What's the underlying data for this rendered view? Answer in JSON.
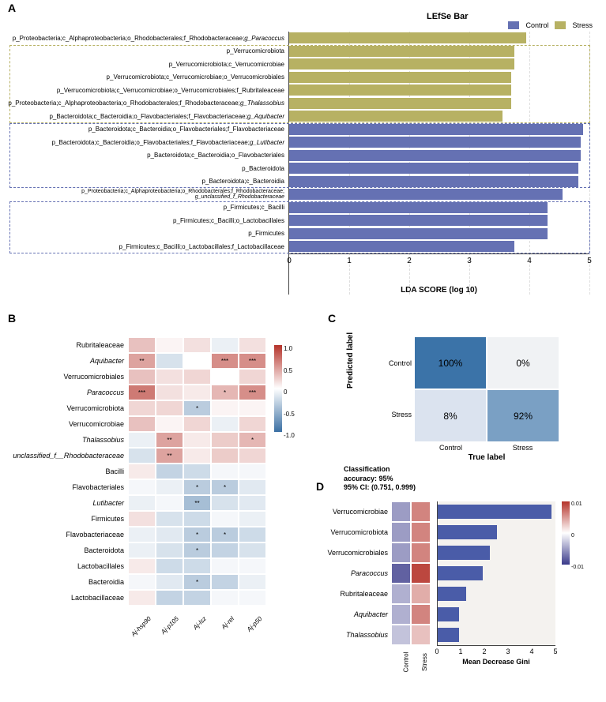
{
  "panelA": {
    "label": "A",
    "title": "LEfSe Bar",
    "legend": [
      {
        "label": "Control",
        "color": "#6571b3"
      },
      {
        "label": "Stress",
        "color": "#b7b163"
      }
    ],
    "xlim": [
      0,
      5
    ],
    "xtick_step": 1,
    "xlabel": "LDA SCORE (log 10)",
    "grid_color": "#dddddd",
    "bars": [
      {
        "label": "p_Proteobacteria;c_Alphaproteobacteria;o_Rhodobacterales;f_Rhodobacteraceae;",
        "genus": "g_Paracoccus",
        "value": 3.95,
        "group": "Stress"
      },
      {
        "label": "p_Verrucomicrobiota",
        "value": 3.75,
        "group": "Stress"
      },
      {
        "label": "p_Verrucomicrobiota;c_Verrucomicrobiae",
        "value": 3.75,
        "group": "Stress"
      },
      {
        "label": "p_Verrucomicrobiota;c_Verrucomicrobiae;o_Verrucomicrobiales",
        "value": 3.7,
        "group": "Stress"
      },
      {
        "label": "p_Verrucomicrobiota;c_Verrucomicrobiae;o_Verrucomicrobiales;f_Rubritaleaceae",
        "value": 3.7,
        "group": "Stress"
      },
      {
        "label": "p_Proteobacteria;c_Alphaproteobacteria;o_Rhodobacterales;f_Rhodobacteraceae;",
        "genus": "g_Thalassobius",
        "value": 3.7,
        "group": "Stress"
      },
      {
        "label": "p_Bacteroidota;c_Bacteroidia;o_Flavobacteriales;f_Flavobacteriaceae;",
        "genus": "g_Aquibacter",
        "value": 3.55,
        "group": "Stress"
      },
      {
        "label": "p_Bacteroidota;c_Bacteroidia;o_Flavobacteriales;f_Flavobacteriaceae",
        "value": 4.9,
        "group": "Control"
      },
      {
        "label": "p_Bacteroidota;c_Bacteroidia;o_Flavobacteriales;f_Flavobacteriaceae;",
        "genus": "g_Lutibacter",
        "value": 4.85,
        "group": "Control"
      },
      {
        "label": "p_Bacteroidota;c_Bacteroidia;o_Flavobacteriales",
        "value": 4.85,
        "group": "Control"
      },
      {
        "label": "p_Bacteroidota",
        "value": 4.82,
        "group": "Control"
      },
      {
        "label": "p_Bacteroidota;c_Bacteroidia",
        "value": 4.82,
        "group": "Control"
      },
      {
        "label": "p_Proteobacteria;c_Alphaproteobacteria;o_Rhodobacterales;f_Rhodobacteraceae;\ng_unclassified_f_Rhodobacteraceae",
        "value": 4.55,
        "group": "Control",
        "twoLine": true,
        "line1": "p_Proteobacteria;c_Alphaproteobacteria;o_Rhodobacterales;f_Rhodobacteraceae;",
        "line2": "g_unclassified_f_Rhodobacteraceae"
      },
      {
        "label": "p_Firmicutes;c_Bacilli",
        "value": 4.3,
        "group": "Control"
      },
      {
        "label": "p_Firmicutes;c_Bacilli;o_Lactobacillales",
        "value": 4.3,
        "group": "Control"
      },
      {
        "label": "p_Firmicutes",
        "value": 4.3,
        "group": "Control"
      },
      {
        "label": "p_Firmicutes;c_Bacilli;o_Lactobacillales;f_Lactobacillaceae",
        "value": 3.75,
        "group": "Control"
      }
    ],
    "boxes": [
      {
        "start": 1,
        "end": 6,
        "color": "#b7b163"
      },
      {
        "start": 7,
        "end": 11,
        "color": "#6571b3"
      },
      {
        "start": 13,
        "end": 16,
        "color": "#6571b3"
      }
    ]
  },
  "panelB": {
    "label": "B",
    "rows": [
      "Rubritaleaceae",
      "Aquibacter",
      "Verrucomicrobiales",
      "Paracoccus",
      "Verrucomicrobiota",
      "Verrucomicrobiae",
      "Thalassobius",
      "unclassified_f__Rhodobacteraceae",
      "Bacilli",
      "Flavobacteriales",
      "Lutibacter",
      "Firmicutes",
      "Flavobacteriaceae",
      "Bacteroidota",
      "Lactobacillales",
      "Bacteroidia",
      "Lactobacillaceae"
    ],
    "row_italic": [
      false,
      true,
      false,
      true,
      false,
      false,
      true,
      true,
      false,
      false,
      true,
      false,
      false,
      false,
      false,
      false,
      false
    ],
    "cols": [
      "Aj-hsp90",
      "Aj-p105",
      "Aj-lsz",
      "Aj-rel",
      "Aj-p50"
    ],
    "values": [
      [
        0.3,
        0.05,
        0.15,
        -0.1,
        0.15
      ],
      [
        0.45,
        -0.2,
        0.0,
        0.55,
        0.55
      ],
      [
        0.3,
        0.15,
        0.2,
        0.0,
        0.2
      ],
      [
        0.65,
        0.15,
        0.1,
        0.35,
        0.55
      ],
      [
        0.2,
        0.2,
        -0.35,
        0.05,
        0.05
      ],
      [
        0.3,
        0.05,
        0.2,
        -0.1,
        0.2
      ],
      [
        -0.1,
        0.45,
        0.1,
        0.25,
        0.35
      ],
      [
        -0.2,
        0.45,
        0.1,
        0.25,
        0.2
      ],
      [
        0.1,
        -0.3,
        -0.25,
        -0.05,
        -0.05
      ],
      [
        -0.05,
        -0.1,
        -0.35,
        -0.35,
        -0.15
      ],
      [
        -0.1,
        -0.05,
        -0.45,
        -0.2,
        -0.15
      ],
      [
        0.15,
        -0.2,
        -0.25,
        -0.05,
        -0.1
      ],
      [
        -0.1,
        -0.15,
        -0.35,
        -0.35,
        -0.25
      ],
      [
        -0.1,
        -0.2,
        -0.35,
        -0.3,
        -0.2
      ],
      [
        0.1,
        -0.25,
        -0.25,
        -0.05,
        -0.05
      ],
      [
        -0.05,
        -0.15,
        -0.35,
        -0.3,
        -0.1
      ],
      [
        0.1,
        -0.3,
        -0.3,
        -0.05,
        -0.05
      ]
    ],
    "stars": [
      [
        "",
        "",
        "",
        "",
        ""
      ],
      [
        "**",
        "",
        "",
        "***",
        "***"
      ],
      [
        "",
        "",
        "",
        "",
        ""
      ],
      [
        "***",
        "",
        "",
        "*",
        "***"
      ],
      [
        "",
        "",
        "*",
        "",
        ""
      ],
      [
        "",
        "",
        "",
        "",
        ""
      ],
      [
        "",
        "**",
        "",
        "",
        "*"
      ],
      [
        "",
        "**",
        "",
        "",
        ""
      ],
      [
        "",
        "",
        "",
        "",
        ""
      ],
      [
        "",
        "",
        "*",
        "*",
        ""
      ],
      [
        "",
        "",
        "**",
        "",
        ""
      ],
      [
        "",
        "",
        "",
        "",
        ""
      ],
      [
        "",
        "",
        "*",
        "*",
        ""
      ],
      [
        "",
        "",
        "*",
        "",
        ""
      ],
      [
        "",
        "",
        "",
        "",
        ""
      ],
      [
        "",
        "",
        "*",
        "",
        ""
      ],
      [
        "",
        "",
        "",
        "",
        ""
      ]
    ],
    "color_pos": "#b5332a",
    "color_neg": "#3a6fa3",
    "colorbar_ticks": [
      {
        "v": "1.0",
        "p": 0
      },
      {
        "v": "0.5",
        "p": 25
      },
      {
        "v": "0",
        "p": 50
      },
      {
        "v": "-0.5",
        "p": 75
      },
      {
        "v": "-1.0",
        "p": 100
      }
    ]
  },
  "panelC": {
    "label": "C",
    "ytitle": "Predicted label",
    "xtitle": "True label",
    "ylabels": [
      "Control",
      "Stress"
    ],
    "xlabels": [
      "Control",
      "Stress"
    ],
    "cells": [
      [
        {
          "text": "100%",
          "color": "#3b73a8"
        },
        {
          "text": "0%",
          "color": "#f0f2f4"
        }
      ],
      [
        {
          "text": "8%",
          "color": "#dbe3ef"
        },
        {
          "text": "92%",
          "color": "#7aa0c4"
        }
      ]
    ],
    "accuracy_lines": [
      "Classification",
      "accuracy: 95%",
      "95% CI: (0.751, 0.999)"
    ]
  },
  "panelD": {
    "label": "D",
    "rows": [
      "Verrucomicrobiae",
      "Verrucomicrobiota",
      "Verrucomicrobiales",
      "Paracoccus",
      "Rubritaleaceae",
      "Aquibacter",
      "Thalassobius"
    ],
    "row_italic": [
      false,
      false,
      false,
      true,
      false,
      true,
      true
    ],
    "heat_cols": [
      "Control",
      "Stress"
    ],
    "heat_values": [
      [
        -0.005,
        0.006
      ],
      [
        -0.005,
        0.006
      ],
      [
        -0.005,
        0.006
      ],
      [
        -0.008,
        0.009
      ],
      [
        -0.004,
        0.004
      ],
      [
        -0.004,
        0.006
      ],
      [
        -0.003,
        0.003
      ]
    ],
    "color_pos": "#b5332a",
    "color_neg": "#3a3a8a",
    "bar_values": [
      4.8,
      2.5,
      2.2,
      1.9,
      1.2,
      0.9,
      0.9
    ],
    "bar_color": "#4a5ca8",
    "bar_bg": "#f4f2ef",
    "xlabel": "Mean Decrease Gini",
    "xlim": [
      0,
      5
    ],
    "xticks": [
      0,
      1,
      2,
      3,
      4,
      5
    ],
    "colorbar_ticks": [
      {
        "v": "0.01",
        "p": 0
      },
      {
        "v": "0",
        "p": 50
      },
      {
        "v": "-0.01",
        "p": 100
      }
    ]
  }
}
